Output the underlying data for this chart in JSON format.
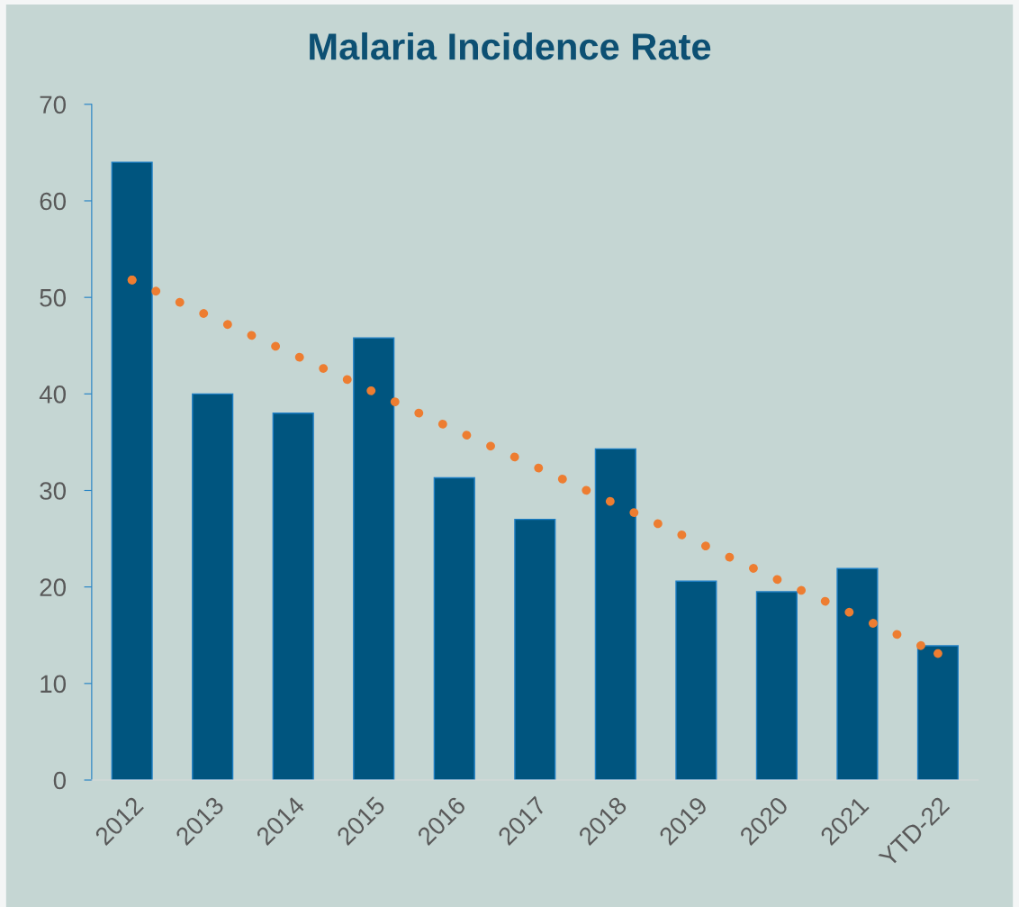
{
  "chart_data": {
    "type": "bar",
    "title": "Malaria Incidence Rate",
    "categories": [
      "2012",
      "2013",
      "2014",
      "2015",
      "2016",
      "2017",
      "2018",
      "2019",
      "2020",
      "2021",
      "YTD-22"
    ],
    "series": [
      {
        "color": "#00557f",
        "values": [
          64,
          40,
          38,
          45.8,
          31.3,
          27,
          34.3,
          20.6,
          19.5,
          21.9,
          13.9
        ]
      },
      {
        "type": "line",
        "color": "#ed7d31",
        "line_style": "dotted",
        "values": [
          51.8,
          47.9,
          44.1,
          40.2,
          36.3,
          32.5,
          28.6,
          24.7,
          20.8,
          17.0,
          13.1
        ]
      }
    ],
    "ylim": [
      0,
      70
    ],
    "yticks": [
      0,
      10,
      20,
      30,
      40,
      50,
      60,
      70
    ],
    "grid": false,
    "legend": false
  }
}
